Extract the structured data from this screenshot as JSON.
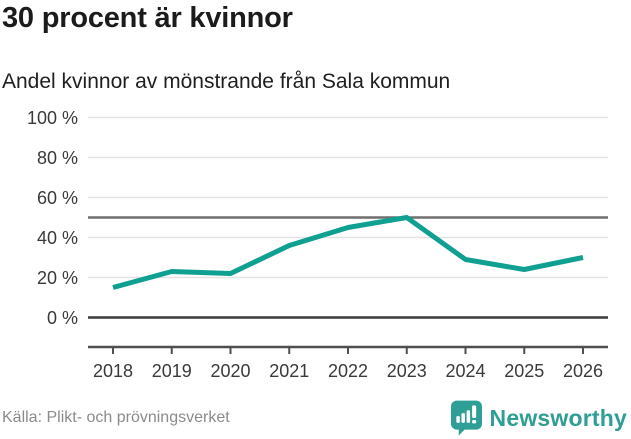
{
  "header": {
    "title": "30 procent är kvinnor",
    "subtitle": "Andel kvinnor av mönstrande från Sala kommun"
  },
  "chart_data": {
    "type": "line",
    "title": "Andel kvinnor av mönstrande från Sala kommun",
    "x": [
      2018,
      2019,
      2020,
      2021,
      2022,
      2023,
      2024,
      2025,
      2026
    ],
    "series": [
      {
        "name": "Andel kvinnor",
        "values": [
          15,
          23,
          22,
          36,
          45,
          50,
          29,
          24,
          30
        ]
      }
    ],
    "unit": "%",
    "ylim": [
      0,
      100
    ],
    "yticks": [
      0,
      20,
      40,
      60,
      80,
      100
    ],
    "ytick_suffix": " %",
    "reference_line": 50,
    "grid": true,
    "legend": "none",
    "line_color": "#10a091"
  },
  "footer": {
    "source": "Källa: Plikt- och prövningsverket",
    "brand": "Newsworthy"
  },
  "colors": {
    "accent": "#10a091",
    "brand": "#2e9e96",
    "title_text": "#1b1b1b",
    "axis_text": "#3a3a3a",
    "gridline": "#e2e2e2",
    "reference_line": "#6f6f6f",
    "zero_line": "#3c3c3c",
    "axis_line": "#4f4f4f",
    "source_text": "#8b8b8b"
  }
}
